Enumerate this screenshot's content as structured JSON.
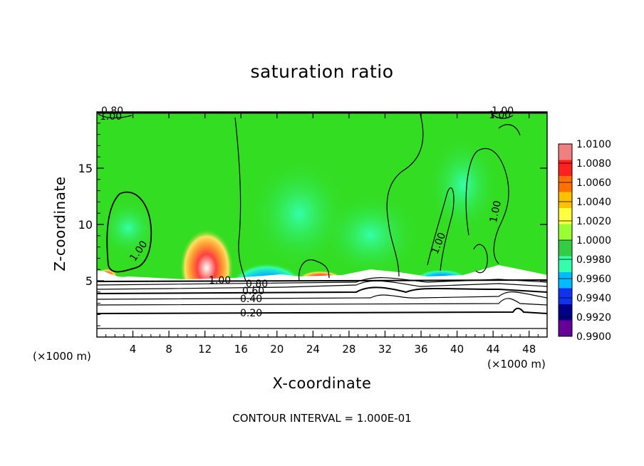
{
  "chart_data": {
    "type": "heatmap",
    "title": "saturation ratio",
    "xlabel": "X-coordinate",
    "ylabel": "Z-coordinate",
    "x_unit_left": "(×1000 m)",
    "x_unit_right": "(×1000 m)",
    "footer": "CONTOUR INTERVAL = 1.000E-01",
    "xlim": [
      0,
      50
    ],
    "ylim": [
      0,
      20
    ],
    "x_ticks": [
      4,
      8,
      12,
      16,
      20,
      24,
      28,
      32,
      36,
      40,
      44,
      48
    ],
    "y_ticks": [
      5,
      10,
      15
    ],
    "colorbar": {
      "levels": [
        "1.0100",
        "1.0080",
        "1.0060",
        "1.0040",
        "1.0020",
        "1.0000",
        "0.9980",
        "0.9960",
        "0.9940",
        "0.9920",
        "0.9900"
      ],
      "colors": [
        "#f08080",
        "#ff2020",
        "#ff7000",
        "#ffc000",
        "#ffff40",
        "#99ff33",
        "#33cc44",
        "#33ffaa",
        "#00bbff",
        "#1133ee",
        "#000088",
        "#660099"
      ]
    },
    "contour_labels": [
      "0.20",
      "0.40",
      "0.60",
      "0.80",
      "1.00",
      "1.00",
      "1.00",
      "1.00",
      "1.00",
      "0.80",
      "1.00",
      "1.00"
    ],
    "features": {
      "background_color": "#33dd22",
      "near_surface_color": "#ffffff",
      "moist_layer_top_km": 5
    }
  }
}
